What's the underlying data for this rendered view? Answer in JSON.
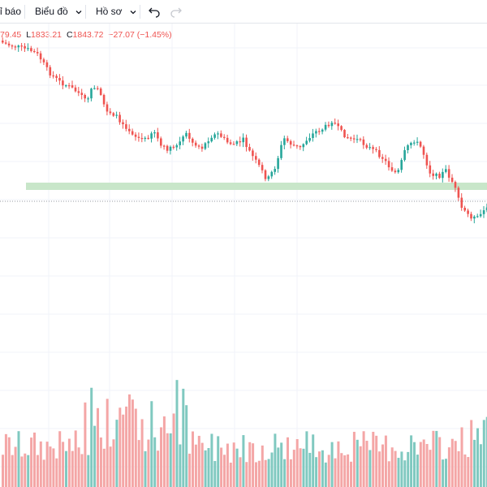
{
  "toolbar": {
    "items": [
      {
        "label": "ỉ báo",
        "has_chevron": false
      },
      {
        "label": "Biểu đồ",
        "has_chevron": true
      },
      {
        "label": "Hồ sơ",
        "has_chevron": true
      }
    ],
    "undo_icon": "undo-arrow-icon",
    "redo_icon": "redo-arrow-icon"
  },
  "legend": {
    "high_tail": "79.45",
    "low_label": "L",
    "low_value": "1833.21",
    "close_label": "C",
    "close_value": "1843.72",
    "change": "−27.07 (−1.45%)"
  },
  "colors": {
    "up": "#26a69a",
    "down": "#ef5350",
    "up_volume": "#80c9c0",
    "down_volume": "#f4a6a6",
    "support_zone": "#c8e6c9",
    "grid": "#f0f3fa",
    "crosshair": "#9598a1"
  },
  "chart_data": {
    "type": "candlestick",
    "title": "",
    "last_candle": {
      "low": 1833.21,
      "close": 1843.72,
      "change": -27.07,
      "change_percent": -1.45
    },
    "support_zone_visible": true,
    "volume_pane_visible": true,
    "grid": true
  }
}
